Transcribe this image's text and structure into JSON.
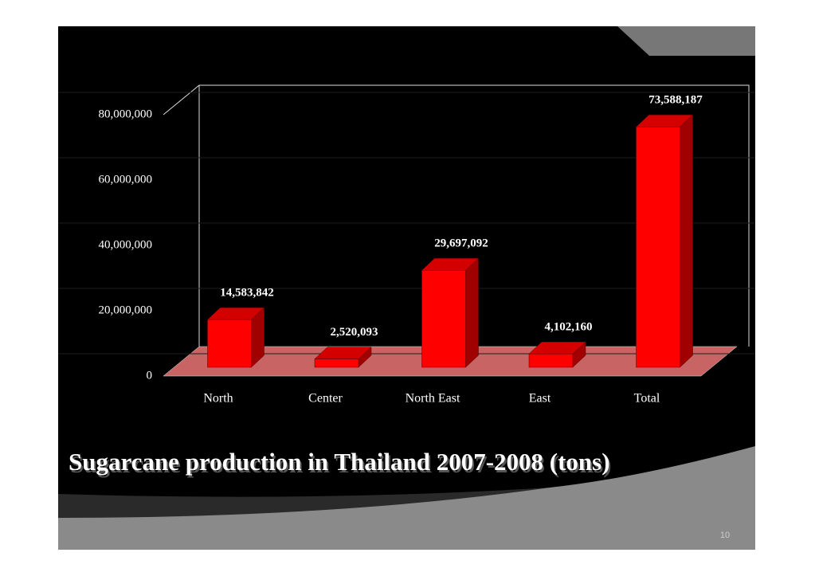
{
  "chart_data": {
    "type": "bar",
    "title": "Sugarcane production in Thailand 2007-2008 (tons)",
    "categories": [
      "North",
      "Center",
      "North East",
      "East",
      "Total"
    ],
    "values": [
      14583842,
      2520093,
      29697092,
      4102160,
      73588187
    ],
    "value_labels": [
      "14,583,842",
      "2,520,093",
      "29,697,092",
      "4,102,160",
      "73,588,187"
    ],
    "color": "#ff0000",
    "ylim": [
      0,
      80000000
    ],
    "yticks": [
      0,
      {
        "value": 20000000,
        "label": "20,000,000"
      },
      {
        "value": 40000000,
        "label": "40,000,000"
      },
      {
        "value": 60000000,
        "label": "60,000,000"
      },
      {
        "value": 80000000,
        "label": "80,000,000"
      }
    ],
    "grid": true
  },
  "slide": {
    "page_number": "10"
  }
}
